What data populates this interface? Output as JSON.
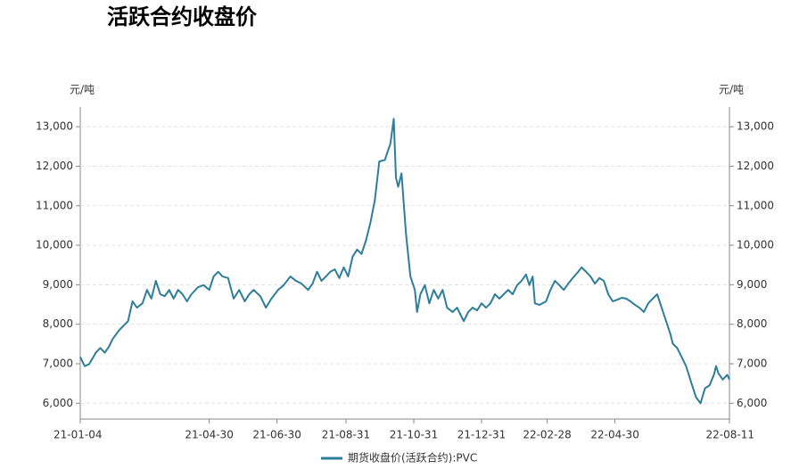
{
  "chart_data": {
    "type": "line",
    "title": "活跃合约收盘价",
    "y_label": "元/吨",
    "y2_label": "元/吨",
    "x": [
      "21-01-04",
      "21-01-08",
      "21-01-12",
      "21-01-18",
      "21-01-22",
      "21-01-26",
      "21-01-30",
      "21-02-02",
      "21-02-08",
      "21-02-16",
      "21-02-20",
      "21-02-24",
      "21-03-01",
      "21-03-05",
      "21-03-09",
      "21-03-13",
      "21-03-17",
      "21-03-21",
      "21-03-25",
      "21-03-29",
      "21-04-02",
      "21-04-06",
      "21-04-10",
      "21-04-14",
      "21-04-20",
      "21-04-25",
      "21-04-30",
      "21-05-04",
      "21-05-08",
      "21-05-12",
      "21-05-17",
      "21-05-22",
      "21-05-27",
      "21-06-01",
      "21-06-05",
      "21-06-09",
      "21-06-15",
      "21-06-20",
      "21-06-25",
      "21-07-01",
      "21-07-06",
      "21-07-12",
      "21-07-17",
      "21-07-22",
      "21-07-28",
      "21-08-01",
      "21-08-05",
      "21-08-09",
      "21-08-13",
      "21-08-17",
      "21-08-21",
      "21-08-25",
      "21-08-29",
      "21-09-02",
      "21-09-06",
      "21-09-10",
      "21-09-14",
      "21-09-18",
      "21-09-22",
      "21-09-26",
      "21-09-30",
      "21-10-05",
      "21-10-10",
      "21-10-13",
      "21-10-15",
      "21-10-17",
      "21-10-20",
      "21-10-24",
      "21-10-28",
      "21-11-01",
      "21-11-03",
      "21-11-06",
      "21-11-10",
      "21-11-14",
      "21-11-18",
      "21-11-22",
      "21-11-26",
      "21-11-30",
      "21-12-05",
      "21-12-09",
      "21-12-13",
      "21-12-15",
      "21-12-19",
      "21-12-23",
      "21-12-27",
      "21-12-31",
      "22-01-04",
      "22-01-08",
      "22-01-12",
      "22-01-16",
      "22-01-20",
      "22-01-24",
      "22-01-28",
      "22-02-01",
      "22-02-05",
      "22-02-09",
      "22-02-12",
      "22-02-15",
      "22-02-17",
      "22-02-21",
      "22-02-27",
      "22-03-03",
      "22-03-07",
      "22-03-11",
      "22-03-15",
      "22-03-19",
      "22-03-23",
      "22-03-28",
      "22-03-31",
      "22-04-04",
      "22-04-08",
      "22-04-12",
      "22-04-16",
      "22-04-20",
      "22-04-24",
      "22-04-28",
      "22-05-02",
      "22-05-06",
      "22-05-10",
      "22-05-14",
      "22-05-18",
      "22-05-22",
      "22-05-26",
      "22-05-30",
      "22-06-03",
      "22-06-07",
      "22-06-11",
      "22-06-15",
      "22-06-19",
      "22-06-21",
      "22-06-25",
      "22-06-29",
      "22-07-03",
      "22-07-08",
      "22-07-12",
      "22-07-16",
      "22-07-20",
      "22-07-24",
      "22-07-28",
      "22-07-30",
      "22-08-01",
      "22-08-05",
      "22-08-09",
      "22-08-11"
    ],
    "series": [
      {
        "name": "期货收盘价(活跃合约):PVC",
        "color": "#2e7d9a",
        "values": [
          7170,
          6940,
          6990,
          7280,
          7400,
          7280,
          7440,
          7620,
          7850,
          8080,
          8580,
          8420,
          8530,
          8870,
          8650,
          9100,
          8760,
          8710,
          8870,
          8650,
          8870,
          8760,
          8580,
          8760,
          8940,
          8990,
          8870,
          9210,
          9330,
          9210,
          9170,
          8650,
          8870,
          8580,
          8760,
          8870,
          8710,
          8420,
          8650,
          8870,
          8990,
          9210,
          9100,
          9030,
          8870,
          9030,
          9330,
          9100,
          9210,
          9330,
          9390,
          9170,
          9440,
          9210,
          9710,
          9890,
          9780,
          10120,
          10570,
          11140,
          12120,
          12160,
          12570,
          13200,
          11710,
          11480,
          11820,
          10300,
          9210,
          8870,
          8310,
          8760,
          8990,
          8530,
          8870,
          8650,
          8870,
          8420,
          8310,
          8420,
          8190,
          8080,
          8310,
          8420,
          8350,
          8530,
          8420,
          8530,
          8760,
          8650,
          8760,
          8870,
          8760,
          8990,
          9100,
          9260,
          8990,
          9210,
          8530,
          8490,
          8580,
          8870,
          9100,
          8990,
          8870,
          9030,
          9170,
          9330,
          9440,
          9330,
          9210,
          9030,
          9170,
          9100,
          8760,
          8580,
          8620,
          8670,
          8650,
          8580,
          8490,
          8420,
          8310,
          8530,
          8650,
          8760,
          8420,
          8080,
          7740,
          7510,
          7400,
          7170,
          6940,
          6490,
          6150,
          6000,
          6380,
          6450,
          6720,
          6940,
          6760,
          6600,
          6720,
          6600
        ]
      }
    ],
    "xlim": [
      "21-01-04",
      "22-08-11"
    ],
    "xticks": [
      "21-01-04",
      "21-04-30",
      "21-06-30",
      "21-08-31",
      "21-10-31",
      "21-12-31",
      "22-02-28",
      "22-04-30",
      "22-08-11"
    ],
    "ylim": [
      5600,
      13500
    ],
    "yticks": [
      {
        "value": 6000,
        "label": "6,000"
      },
      {
        "value": 7000,
        "label": "7,000"
      },
      {
        "value": 8000,
        "label": "8,000"
      },
      {
        "value": 9000,
        "label": "9,000"
      },
      {
        "value": 10000,
        "label": "10,000"
      },
      {
        "value": 11000,
        "label": "11,000"
      },
      {
        "value": 12000,
        "label": "12,000"
      },
      {
        "value": 13000,
        "label": "13,000"
      }
    ],
    "y2lim": [
      5600,
      13500
    ],
    "y2ticks": [
      {
        "value": 6000,
        "label": "6,000"
      },
      {
        "value": 7000,
        "label": "7,000"
      },
      {
        "value": 8000,
        "label": "8,000"
      },
      {
        "value": 9000,
        "label": "9,000"
      },
      {
        "value": 10000,
        "label": "10,000"
      },
      {
        "value": 11000,
        "label": "11,000"
      },
      {
        "value": 12000,
        "label": "12,000"
      },
      {
        "value": 13000,
        "label": "13,000"
      }
    ],
    "grid": true
  }
}
